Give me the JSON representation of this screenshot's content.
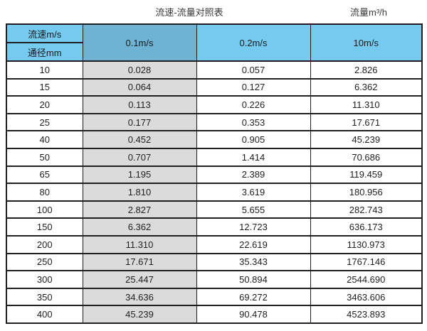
{
  "chart_data": {
    "type": "table",
    "title": "流速-流量对照表",
    "right_caption": "流量m³/h",
    "corner": {
      "top": "流速m/s",
      "bottom": "通径mm"
    },
    "velocity_columns": [
      "0.1m/s",
      "0.2m/s",
      "10m/s"
    ],
    "highlighted_column": "0.1m/s",
    "rows": [
      {
        "diameter": "10",
        "flows": [
          "0.028",
          "0.057",
          "2.826"
        ]
      },
      {
        "diameter": "15",
        "flows": [
          "0.064",
          "0.127",
          "6.362"
        ]
      },
      {
        "diameter": "20",
        "flows": [
          "0.113",
          "0.226",
          "11.310"
        ]
      },
      {
        "diameter": "25",
        "flows": [
          "0.177",
          "0.353",
          "17.671"
        ]
      },
      {
        "diameter": "40",
        "flows": [
          "0.452",
          "0.905",
          "45.239"
        ]
      },
      {
        "diameter": "50",
        "flows": [
          "0.707",
          "1.414",
          "70.686"
        ]
      },
      {
        "diameter": "65",
        "flows": [
          "1.195",
          "2.389",
          "119.459"
        ]
      },
      {
        "diameter": "80",
        "flows": [
          "1.810",
          "3.619",
          "180.956"
        ]
      },
      {
        "diameter": "100",
        "flows": [
          "2.827",
          "5.655",
          "282.743"
        ]
      },
      {
        "diameter": "150",
        "flows": [
          "6.362",
          "12.723",
          "636.173"
        ]
      },
      {
        "diameter": "200",
        "flows": [
          "11.310",
          "22.619",
          "1130.973"
        ]
      },
      {
        "diameter": "250",
        "flows": [
          "17.671",
          "35.343",
          "1767.146"
        ]
      },
      {
        "diameter": "300",
        "flows": [
          "25.447",
          "50.894",
          "2544.690"
        ]
      },
      {
        "diameter": "350",
        "flows": [
          "34.636",
          "69.272",
          "3463.606"
        ]
      },
      {
        "diameter": "400",
        "flows": [
          "45.239",
          "90.478",
          "4523.893"
        ]
      }
    ]
  },
  "colors": {
    "header_blue": "#74cbef",
    "header_blue_dark": "#6fb3d4",
    "gray_column": "#dbdbdb",
    "border": "#1f1f1f",
    "text": "#262626"
  }
}
